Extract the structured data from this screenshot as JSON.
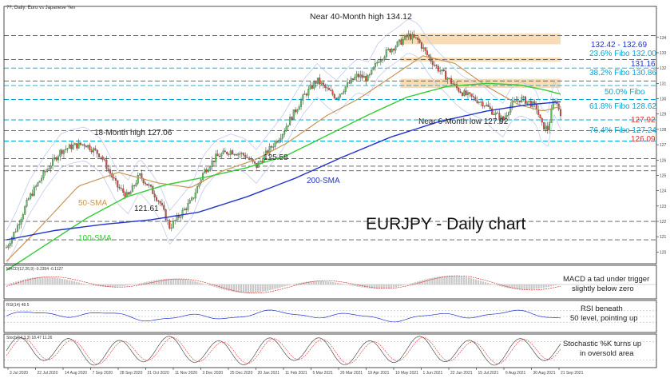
{
  "header": {
    "title": "??, Daily: Euro vs Japanese Yen"
  },
  "chart_data": {
    "type": "candlestick",
    "title": "EURJPY - Daily chart",
    "ylim": [
      119.5,
      135.5
    ],
    "price_ticks": [
      "134",
      "133",
      "132",
      "131",
      "130",
      "129",
      "128",
      "127",
      "126",
      "125",
      "124",
      "123",
      "122",
      "121",
      "120"
    ],
    "x_ticks": [
      "3 Jul 2020",
      "22 Jul 2020",
      "14 Aug 2020",
      "7 Sep 2020",
      "28 Sep 2020",
      "21 Oct 2020",
      "11 Nov 2020",
      "3 Dec 2020",
      "25 Dec 2020",
      "20 Jan 2021",
      "11 Feb 2021",
      "5 Mar 2021",
      "26 Mar 2021",
      "19 Apr 2021",
      "10 May 2021",
      "1 Jun 2021",
      "22 Jun 2021",
      "15 Jul 2021",
      "6 Aug 2021",
      "30 Aug 2021",
      "21 Sep 2021"
    ],
    "series": [
      {
        "name": "50-SMA",
        "color": "#c8955a"
      },
      {
        "name": "100-SMA",
        "color": "#33cc33"
      },
      {
        "name": "200-SMA",
        "color": "#2233cc"
      }
    ],
    "price_path": [
      [
        0,
        120.3
      ],
      [
        12,
        121.5
      ],
      [
        28,
        123.5
      ],
      [
        48,
        125.2
      ],
      [
        68,
        126.6
      ],
      [
        82,
        126.9
      ],
      [
        98,
        127.06
      ],
      [
        118,
        126.3
      ],
      [
        138,
        124.3
      ],
      [
        152,
        123.6
      ],
      [
        166,
        125.0
      ],
      [
        178,
        124.3
      ],
      [
        192,
        123.2
      ],
      [
        204,
        121.61
      ],
      [
        218,
        122.5
      ],
      [
        232,
        123.4
      ],
      [
        246,
        125.2
      ],
      [
        262,
        126.2
      ],
      [
        280,
        126.6
      ],
      [
        298,
        126.3
      ],
      [
        312,
        125.58
      ],
      [
        330,
        126.8
      ],
      [
        345,
        127.8
      ],
      [
        358,
        129.0
      ],
      [
        372,
        130.2
      ],
      [
        388,
        131.2
      ],
      [
        400,
        130.6
      ],
      [
        412,
        130.1
      ],
      [
        424,
        130.8
      ],
      [
        438,
        131.5
      ],
      [
        452,
        131.3
      ],
      [
        464,
        132.5
      ],
      [
        476,
        133.1
      ],
      [
        490,
        133.6
      ],
      [
        502,
        134.12
      ],
      [
        514,
        133.8
      ],
      [
        526,
        132.8
      ],
      [
        538,
        132.0
      ],
      [
        550,
        131.4
      ],
      [
        562,
        130.7
      ],
      [
        572,
        130.3
      ],
      [
        584,
        130.0
      ],
      [
        596,
        129.7
      ],
      [
        608,
        129.1
      ],
      [
        620,
        128.6
      ],
      [
        630,
        129.6
      ],
      [
        642,
        130.0
      ],
      [
        652,
        129.8
      ],
      [
        662,
        129.4
      ],
      [
        668,
        128.3
      ],
      [
        676,
        128.0
      ],
      [
        684,
        130.05
      ],
      [
        692,
        129.1
      ]
    ],
    "sma50_path": [
      [
        0,
        119.4
      ],
      [
        40,
        121.5
      ],
      [
        90,
        124.3
      ],
      [
        140,
        125.2
      ],
      [
        190,
        124.5
      ],
      [
        230,
        124.2
      ],
      [
        270,
        125.3
      ],
      [
        310,
        126.0
      ],
      [
        350,
        127.1
      ],
      [
        400,
        128.9
      ],
      [
        440,
        130.0
      ],
      [
        480,
        131.4
      ],
      [
        520,
        132.8
      ],
      [
        560,
        132.3
      ],
      [
        600,
        130.8
      ],
      [
        640,
        129.6
      ],
      [
        670,
        129.2
      ],
      [
        692,
        129.5
      ]
    ],
    "sma100_path": [
      [
        0,
        118.8
      ],
      [
        50,
        120.5
      ],
      [
        100,
        122.2
      ],
      [
        150,
        123.6
      ],
      [
        200,
        124.4
      ],
      [
        250,
        124.9
      ],
      [
        300,
        125.5
      ],
      [
        350,
        126.3
      ],
      [
        400,
        127.6
      ],
      [
        450,
        128.9
      ],
      [
        500,
        130.1
      ],
      [
        550,
        130.8
      ],
      [
        600,
        131.0
      ],
      [
        640,
        130.9
      ],
      [
        670,
        130.6
      ],
      [
        692,
        130.3
      ]
    ],
    "sma200_path": [
      [
        0,
        120.8
      ],
      [
        60,
        121.4
      ],
      [
        120,
        121.8
      ],
      [
        180,
        122.1
      ],
      [
        240,
        122.6
      ],
      [
        300,
        123.6
      ],
      [
        360,
        124.8
      ],
      [
        420,
        126.2
      ],
      [
        480,
        127.5
      ],
      [
        540,
        128.5
      ],
      [
        600,
        129.2
      ],
      [
        650,
        129.6
      ],
      [
        692,
        129.8
      ]
    ],
    "hlines": [
      {
        "label": "Near 40-Month high 134.12",
        "value": 134.12,
        "style": "dashed",
        "color": "#555555"
      },
      {
        "label": "132.42 - 132.69",
        "value": 132.55,
        "style": "dashed",
        "color": "#555555"
      },
      {
        "label": "23.6% Fibo 132.00",
        "value": 132.0,
        "style": "dashed",
        "color": "#00a8d8"
      },
      {
        "label": "131.16",
        "value": 131.16,
        "style": "dashed",
        "color": "#555555"
      },
      {
        "label": "38.2% Fibo 130.86",
        "value": 130.86,
        "style": "dashed",
        "color": "#00a8d8"
      },
      {
        "label": "50.0% Fibo",
        "value": 129.95,
        "style": "dashed",
        "color": "#00a8d8"
      },
      {
        "label": "61.8% Fibo 128.62",
        "value": 128.62,
        "style": "dashed",
        "color": "#00a8d8"
      },
      {
        "label": "127.92",
        "value": 127.92,
        "style": "dashed",
        "color": "#555555"
      },
      {
        "label": "76.4% Fibo 127.24",
        "value": 127.24,
        "style": "dashed",
        "color": "#00a8d8"
      },
      {
        "label": "126.09",
        "value": 126.09,
        "style": "dashed",
        "color": "#555555"
      },
      {
        "label": "",
        "value": 125.6,
        "style": "dashed",
        "color": "#555555"
      },
      {
        "label": "",
        "value": 125.3,
        "style": "dashed",
        "color": "#555555"
      },
      {
        "label": "",
        "value": 122.0,
        "style": "dashed",
        "color": "#555555"
      },
      {
        "label": "",
        "value": 120.8,
        "style": "dashed",
        "color": "#555555"
      }
    ],
    "zones": [
      {
        "from": 133.55,
        "to": 134.25,
        "color": "#f6d6a8"
      },
      {
        "from": 132.42,
        "to": 132.69,
        "color": "#f6d6a8"
      },
      {
        "from": 130.7,
        "to": 131.3,
        "color": "#f6d6a8"
      }
    ],
    "annotations": [
      {
        "text": "Near 40-Month high 134.12",
        "color": "#222222"
      },
      {
        "text": "132.42 - 132.69",
        "color": "#2233cc"
      },
      {
        "text": "23.6% Fibo 132.00",
        "color": "#00a8d8"
      },
      {
        "text": "131.16",
        "color": "#2233cc"
      },
      {
        "text": "38.2% Fibo 130.86",
        "color": "#00a8d8"
      },
      {
        "text": "50.0% Fibo",
        "color": "#00a8d8"
      },
      {
        "text": "61.8% Fibo 128.62",
        "color": "#00a8d8"
      },
      {
        "text": "127.92",
        "color": "#e03030"
      },
      {
        "text": "Near 6-Month low 127.92",
        "color": "#222222"
      },
      {
        "text": "76.4% Fibo 127.24",
        "color": "#00a8d8"
      },
      {
        "text": "126.09",
        "color": "#e03030"
      },
      {
        "text": "18-Month high 127.06",
        "color": "#222222"
      },
      {
        "text": "125.58",
        "color": "#222222"
      },
      {
        "text": "121.61",
        "color": "#222222"
      },
      {
        "text": "50-SMA",
        "color": "#c8955a"
      },
      {
        "text": "100-SMA",
        "color": "#33cc33"
      },
      {
        "text": "200-SMA",
        "color": "#2233cc"
      }
    ]
  },
  "indicators": {
    "macd": {
      "label": "MACD(12,26,9) -0.2354 -0.1127",
      "note_1": "MACD a tad under trigger",
      "note_2": "slightly below zero"
    },
    "rsi": {
      "label": "RSI(14) 48.5",
      "note_1": "RSI beneath",
      "note_2": "50 level, pointing up",
      "value": 48.5
    },
    "stochastic": {
      "label": "Stoch(14,3,3) 18.47 11.26",
      "note_1": "Stochastic %K turns up",
      "note_2": "in oversold area"
    }
  }
}
